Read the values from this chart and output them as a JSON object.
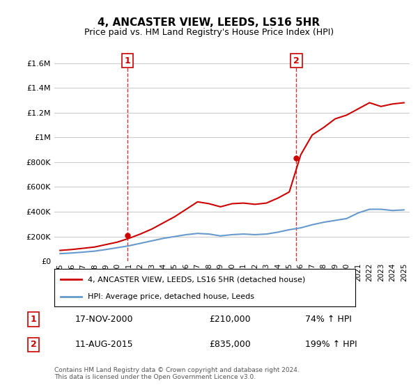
{
  "title": "4, ANCASTER VIEW, LEEDS, LS16 5HR",
  "subtitle": "Price paid vs. HM Land Registry's House Price Index (HPI)",
  "legend_line1": "4, ANCASTER VIEW, LEEDS, LS16 5HR (detached house)",
  "legend_line2": "HPI: Average price, detached house, Leeds",
  "purchase1_date": "17-NOV-2000",
  "purchase1_price": 210000,
  "purchase1_pct": "74%",
  "purchase1_year": 2000.88,
  "purchase2_date": "11-AUG-2015",
  "purchase2_price": 835000,
  "purchase2_pct": "199%",
  "purchase2_year": 2015.62,
  "footer": "Contains HM Land Registry data © Crown copyright and database right 2024.\nThis data is licensed under the Open Government Licence v3.0.",
  "red_color": "#cc0000",
  "blue_color": "#6699cc",
  "vline_color": "#cc0000",
  "background_color": "#ffffff",
  "grid_color": "#cccccc",
  "ylim": [
    0,
    1700000
  ],
  "xlim_start": 1995,
  "xlim_end": 2025.5,
  "hpi_years": [
    1995,
    1996,
    1997,
    1998,
    1999,
    2000,
    2001,
    2002,
    2003,
    2004,
    2005,
    2006,
    2007,
    2008,
    2009,
    2010,
    2011,
    2012,
    2013,
    2014,
    2015,
    2016,
    2017,
    2018,
    2019,
    2020,
    2021,
    2022,
    2023,
    2024,
    2025
  ],
  "hpi_values": [
    62000,
    67000,
    74000,
    82000,
    95000,
    110000,
    125000,
    145000,
    165000,
    185000,
    200000,
    215000,
    225000,
    220000,
    205000,
    215000,
    220000,
    215000,
    220000,
    235000,
    255000,
    270000,
    295000,
    315000,
    330000,
    345000,
    390000,
    420000,
    420000,
    410000,
    415000
  ],
  "price_years": [
    1995,
    1996,
    1997,
    1998,
    1999,
    2000,
    2001,
    2002,
    2003,
    2004,
    2005,
    2006,
    2007,
    2008,
    2009,
    2010,
    2011,
    2012,
    2013,
    2014,
    2015,
    2016,
    2017,
    2018,
    2019,
    2020,
    2021,
    2022,
    2023,
    2024,
    2025
  ],
  "price_values": [
    88000,
    95000,
    105000,
    115000,
    135000,
    155000,
    185000,
    220000,
    260000,
    310000,
    360000,
    420000,
    480000,
    465000,
    440000,
    465000,
    470000,
    460000,
    470000,
    510000,
    560000,
    860000,
    1020000,
    1080000,
    1150000,
    1180000,
    1230000,
    1280000,
    1250000,
    1270000,
    1280000
  ]
}
